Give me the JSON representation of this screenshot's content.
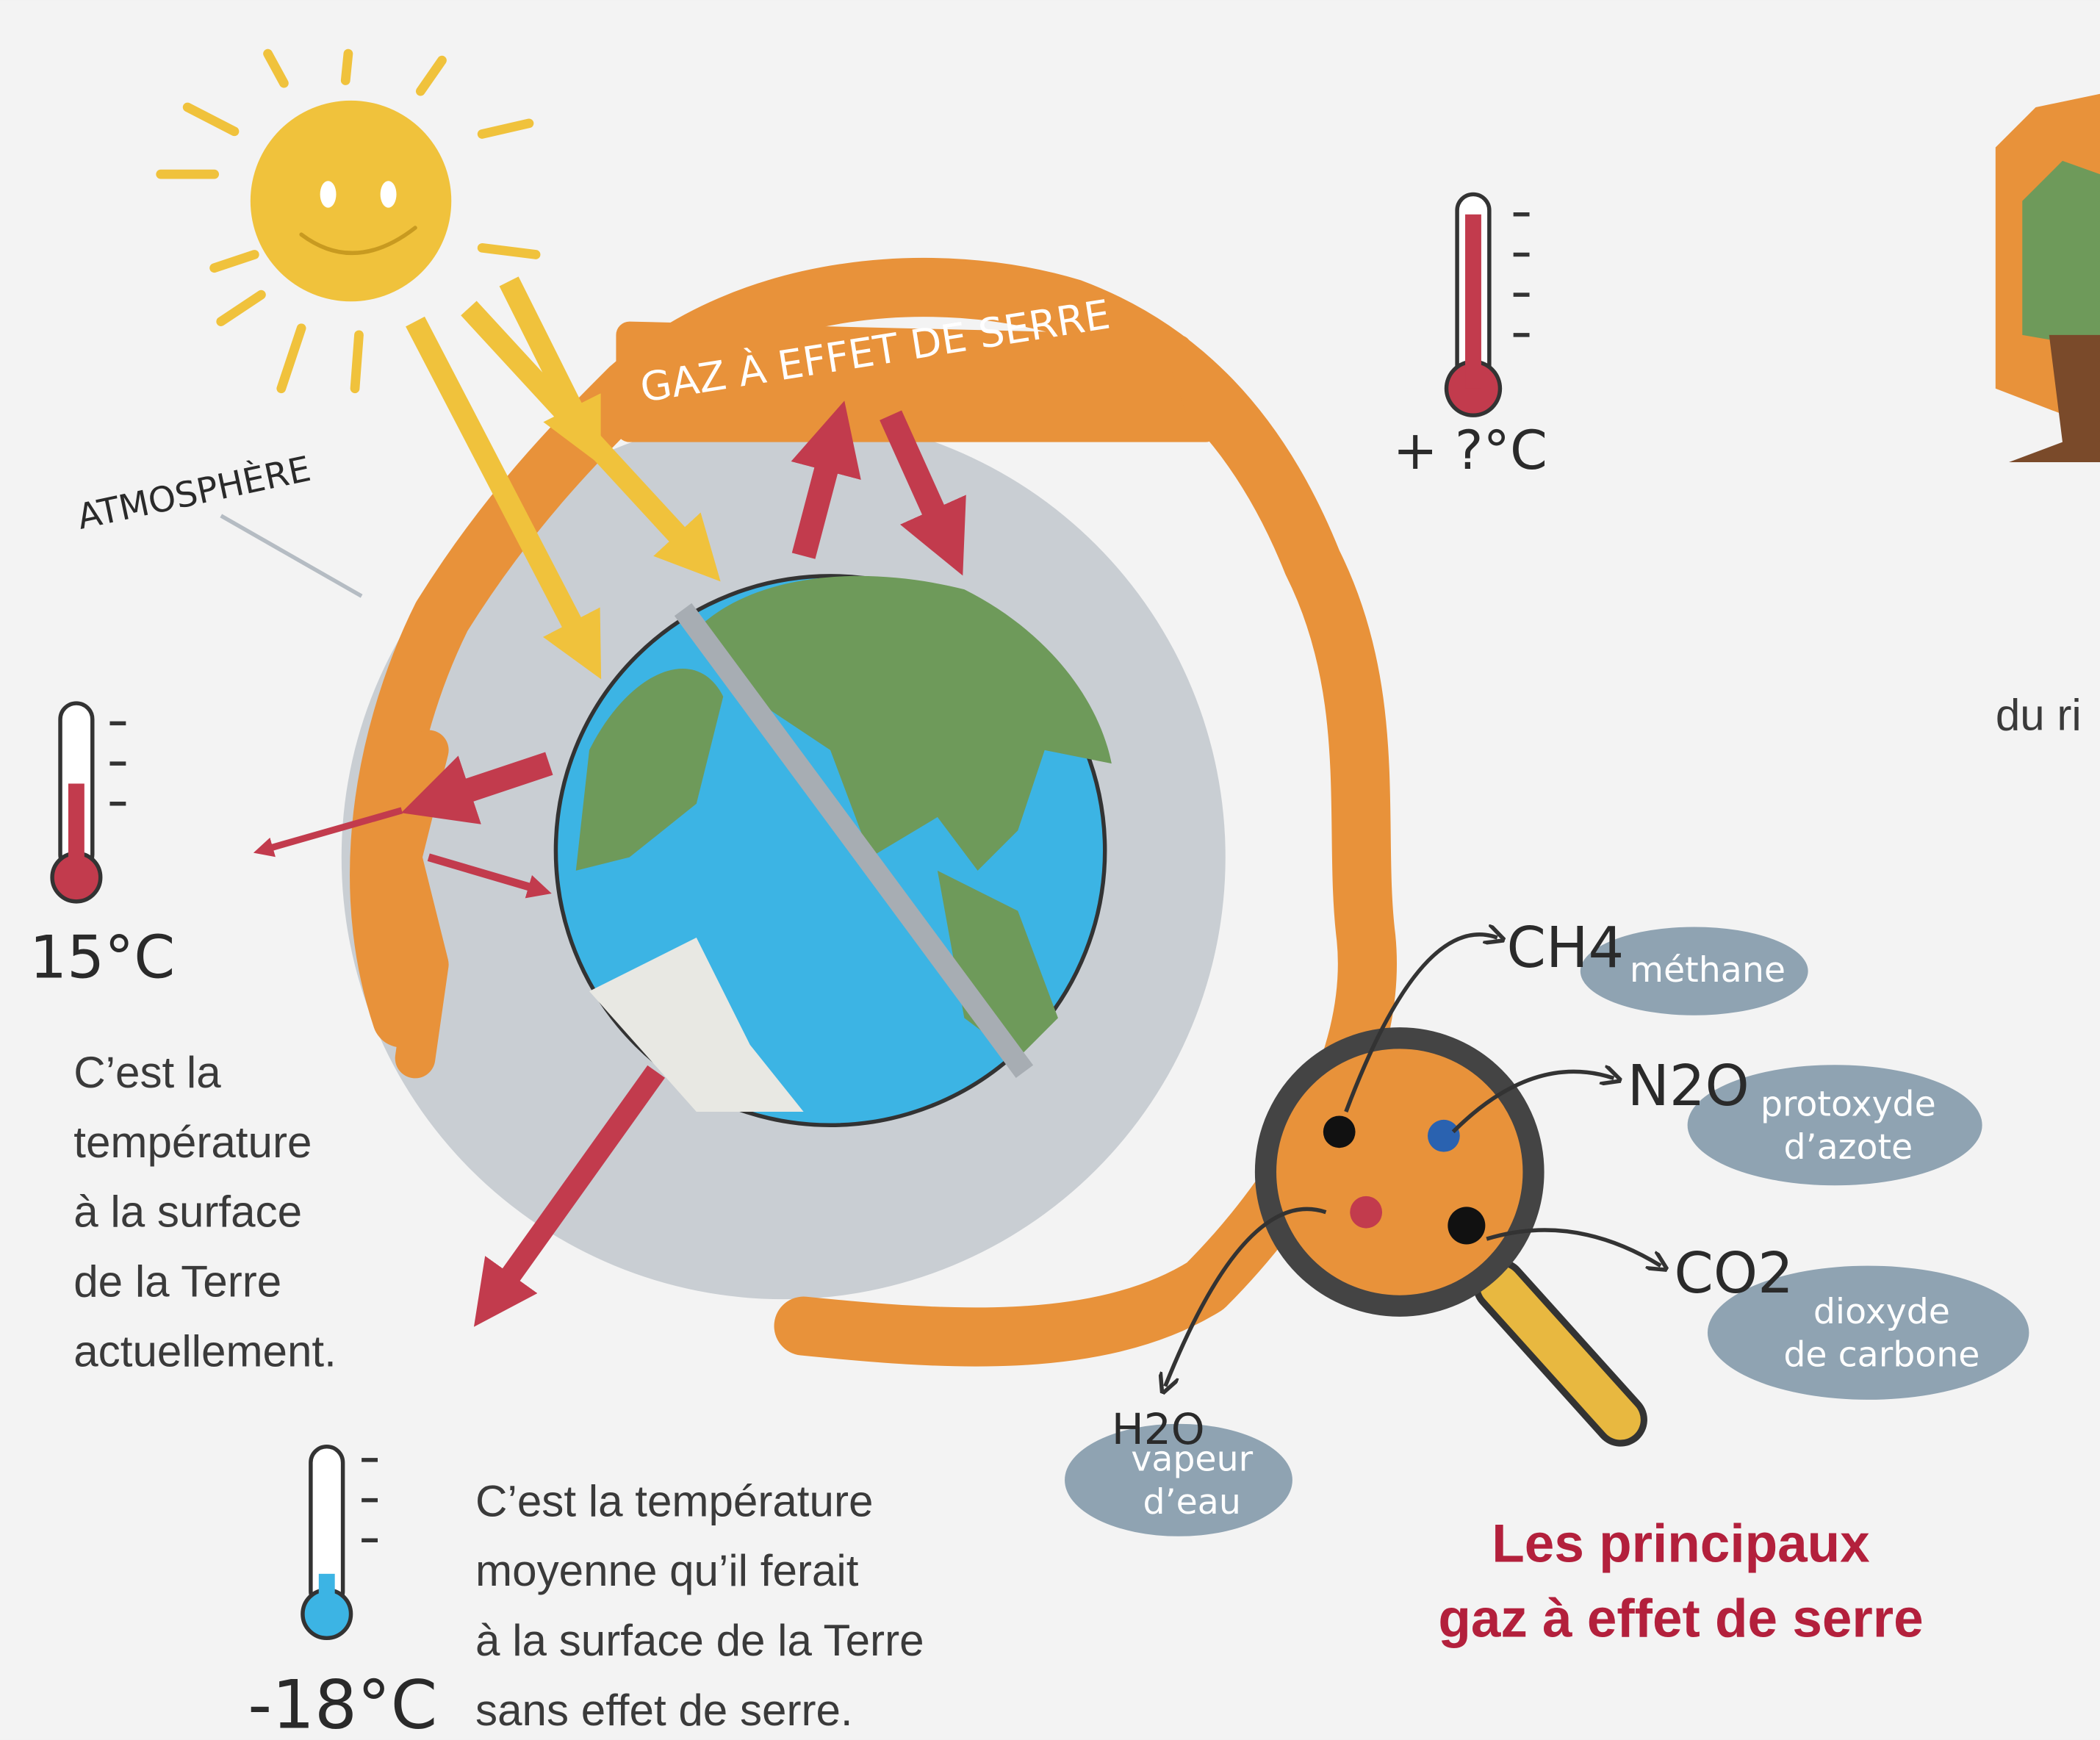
{
  "atmosphere_label": "ATMOSPHÈRE",
  "greenhouse_label": "GAZ À EFFET DE SERRE",
  "future_temperature": "+ ?°C",
  "current": {
    "temperature": "15°C",
    "text": [
      "C’est la",
      "température",
      "à la surface",
      "de la Terre",
      "actuellement."
    ]
  },
  "without": {
    "temperature": "-18°C",
    "text": [
      "C’est la température",
      "moyenne qu’il ferait",
      "à la surface de la Terre",
      "sans effet de serre."
    ]
  },
  "gases": [
    {
      "formula": "CH4",
      "name": [
        "méthane"
      ]
    },
    {
      "formula": "N2O",
      "name": [
        "protoxyde",
        "d’azote"
      ]
    },
    {
      "formula": "CO2",
      "name": [
        "dioxyde",
        "de carbone"
      ]
    },
    {
      "formula": "H2O",
      "name": [
        "vapeur",
        "d’eau"
      ]
    }
  ],
  "gases_title": [
    "Les principaux",
    "gaz à effet de serre"
  ],
  "cut_text": "du ri"
}
